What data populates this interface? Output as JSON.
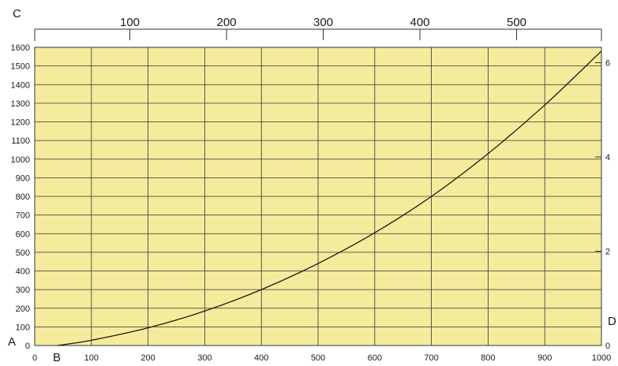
{
  "chart_data": {
    "type": "line",
    "title": "",
    "corner_labels": {
      "top_left": "C",
      "bottom_left": "A",
      "bottom_left_x": "B",
      "right_bottom": "D"
    },
    "x_axis_bottom": {
      "range": [
        0,
        1000
      ],
      "ticks": [
        0,
        100,
        200,
        300,
        400,
        500,
        600,
        700,
        800,
        900,
        1000
      ]
    },
    "y_axis_left": {
      "range": [
        0,
        1600
      ],
      "ticks": [
        0,
        100,
        200,
        300,
        400,
        500,
        600,
        700,
        800,
        900,
        1000,
        1100,
        1200,
        1300,
        1400,
        1500,
        1600
      ]
    },
    "x_axis_top": {
      "ticks": [
        100,
        200,
        300,
        400,
        500
      ]
    },
    "y_axis_right": {
      "ticks": [
        0,
        2,
        4,
        6
      ]
    },
    "grid": true,
    "colors": {
      "plot_background": "#f4ec9c",
      "grid": "#333333",
      "line": "#1a1a1a"
    },
    "series": [
      {
        "x": [
          40,
          100,
          200,
          300,
          400,
          500,
          600,
          700,
          800,
          900,
          1000
        ],
        "y": [
          0,
          28,
          95,
          185,
          300,
          440,
          605,
          800,
          1030,
          1290,
          1580
        ]
      }
    ]
  }
}
